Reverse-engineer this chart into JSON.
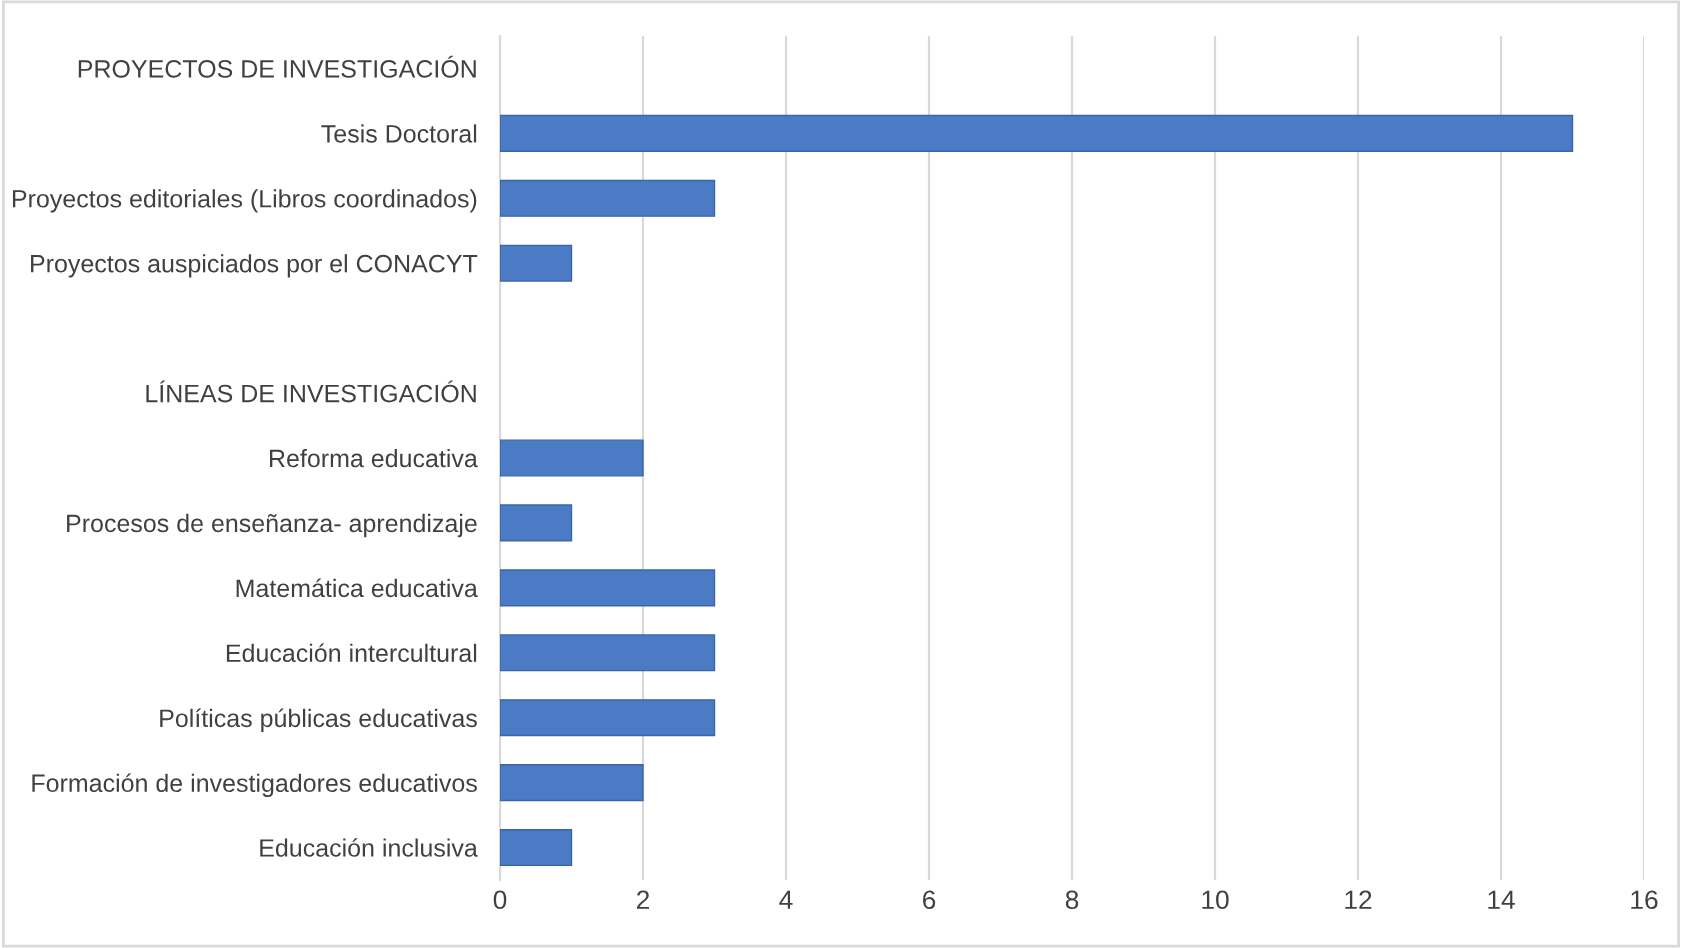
{
  "chart_data": {
    "type": "bar",
    "orientation": "horizontal",
    "categories": [
      "PROYECTOS DE INVESTIGACIÓN",
      "Tesis Doctoral",
      "Proyectos editoriales (Libros coordinados)",
      "Proyectos auspiciados por el CONACYT",
      null,
      "LÍNEAS DE INVESTIGACIÓN",
      "Reforma educativa",
      "Procesos de enseñanza- aprendizaje",
      "Matemática educativa",
      "Educación intercultural",
      "Políticas públicas educativas",
      "Formación de investigadores educativos",
      "Educación inclusiva"
    ],
    "values": [
      null,
      15,
      3,
      1,
      null,
      null,
      2,
      1,
      3,
      3,
      3,
      2,
      1
    ],
    "color": "#4a7bc4",
    "xlim": [
      0,
      16
    ],
    "xticks": [
      0,
      2,
      4,
      6,
      8,
      10,
      12,
      14,
      16
    ],
    "grid": "x",
    "legend": false
  }
}
